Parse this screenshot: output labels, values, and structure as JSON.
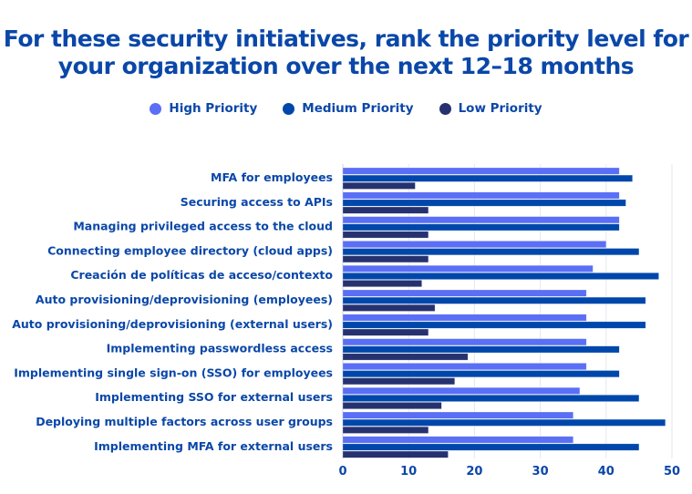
{
  "chart_data": {
    "type": "bar",
    "orientation": "horizontal",
    "title": "For these security initiatives, rank the priority level for your organization over the next 12–18 months",
    "categories": [
      "MFA for employees",
      "Securing access to APIs",
      "Managing privileged access to the cloud",
      "Connecting employee directory (cloud apps)",
      "Creación de políticas de acceso/contexto",
      "Auto provisioning/deprovisioning (employees)",
      "Auto provisioning/deprovisioning (external users)",
      "Implementing passwordless access",
      "Implementing single sign-on (SSO) for employees",
      "Implementing SSO for external users",
      "Deploying multiple factors across user groups",
      "Implementing MFA for external users"
    ],
    "series": [
      {
        "name": "High Priority",
        "color": "#5a6ff5",
        "values": [
          42,
          42,
          42,
          40,
          38,
          37,
          37,
          37,
          37,
          36,
          35,
          35
        ]
      },
      {
        "name": "Medium Priority",
        "color": "#0047ab",
        "values": [
          44,
          43,
          42,
          45,
          48,
          46,
          46,
          42,
          42,
          45,
          49,
          45
        ]
      },
      {
        "name": "Low Priority",
        "color": "#263270",
        "values": [
          11,
          13,
          13,
          13,
          12,
          14,
          13,
          19,
          17,
          15,
          13,
          16
        ]
      }
    ],
    "xlim": [
      0,
      50
    ],
    "xticks": [
      "0",
      "10",
      "20",
      "30",
      "40",
      "50"
    ],
    "grid": true,
    "legend_position": "top"
  }
}
